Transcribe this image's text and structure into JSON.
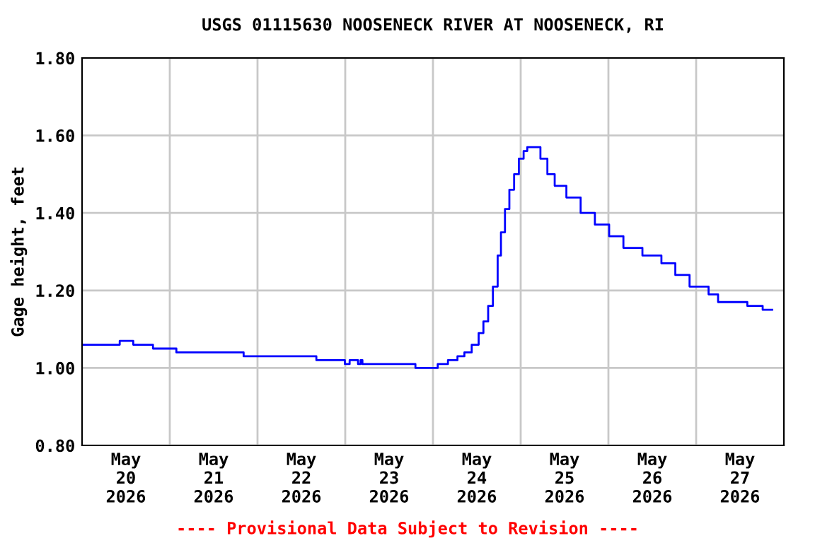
{
  "chart_data": {
    "type": "step",
    "title": "USGS 01115630 NOOSENECK RIVER AT NOOSENECK, RI",
    "ylabel": "Gage height, feet",
    "annotations": [
      "---- Provisional Data Subject to Revision ----"
    ],
    "x": [
      "2026-05-20T00:00",
      "2026-05-20T10:18",
      "2026-05-20T14:00",
      "2026-05-20T19:24",
      "2026-05-21T01:48",
      "2026-05-21T20:12",
      "2026-05-22T16:06",
      "2026-05-22T23:54",
      "2026-05-23T01:12",
      "2026-05-23T03:30",
      "2026-05-23T04:12",
      "2026-05-23T04:42",
      "2026-05-23T19:12",
      "2026-05-24T01:18",
      "2026-05-24T04:06",
      "2026-05-24T06:42",
      "2026-05-24T08:36",
      "2026-05-24T10:36",
      "2026-05-24T12:30",
      "2026-05-24T13:48",
      "2026-05-24T15:06",
      "2026-05-24T16:24",
      "2026-05-24T17:42",
      "2026-05-24T18:36",
      "2026-05-24T19:42",
      "2026-05-24T20:54",
      "2026-05-24T22:12",
      "2026-05-24T23:30",
      "2026-05-25T00:48",
      "2026-05-25T01:48",
      "2026-05-25T03:48",
      "2026-05-25T05:24",
      "2026-05-25T07:18",
      "2026-05-25T09:18",
      "2026-05-25T12:30",
      "2026-05-25T16:24",
      "2026-05-25T20:18",
      "2026-05-26T00:12",
      "2026-05-26T04:06",
      "2026-05-26T09:18",
      "2026-05-26T14:30",
      "2026-05-26T18:18",
      "2026-05-26T22:12",
      "2026-05-27T03:24",
      "2026-05-27T06:00",
      "2026-05-27T14:00",
      "2026-05-27T18:12",
      "2026-05-27T20:48"
    ],
    "series": [
      {
        "color": "#0000ff",
        "values": [
          1.06,
          1.07,
          1.06,
          1.05,
          1.04,
          1.03,
          1.02,
          1.01,
          1.02,
          1.01,
          1.02,
          1.01,
          1.0,
          1.01,
          1.02,
          1.03,
          1.04,
          1.06,
          1.09,
          1.12,
          1.16,
          1.21,
          1.29,
          1.35,
          1.41,
          1.46,
          1.5,
          1.54,
          1.56,
          1.57,
          1.57,
          1.54,
          1.5,
          1.47,
          1.44,
          1.4,
          1.37,
          1.34,
          1.31,
          1.29,
          1.27,
          1.24,
          1.21,
          1.19,
          1.17,
          1.16,
          1.15,
          1.15
        ]
      }
    ],
    "xlim": [
      "2026-05-20T00:00",
      "2026-05-28T00:00"
    ],
    "xticks": [
      {
        "value": "2026-05-20T12:00",
        "label": "May\n20\n2026"
      },
      {
        "value": "2026-05-21T00:00",
        "label": null
      },
      {
        "value": "2026-05-21T12:00",
        "label": "May\n21\n2026"
      },
      {
        "value": "2026-05-22T00:00",
        "label": null
      },
      {
        "value": "2026-05-22T12:00",
        "label": "May\n22\n2026"
      },
      {
        "value": "2026-05-23T00:00",
        "label": null
      },
      {
        "value": "2026-05-23T12:00",
        "label": "May\n23\n2026"
      },
      {
        "value": "2026-05-24T00:00",
        "label": null
      },
      {
        "value": "2026-05-24T12:00",
        "label": "May\n24\n2026"
      },
      {
        "value": "2026-05-25T00:00",
        "label": null
      },
      {
        "value": "2026-05-25T12:00",
        "label": "May\n25\n2026"
      },
      {
        "value": "2026-05-26T00:00",
        "label": null
      },
      {
        "value": "2026-05-26T12:00",
        "label": "May\n26\n2026"
      },
      {
        "value": "2026-05-27T00:00",
        "label": null
      },
      {
        "value": "2026-05-27T12:00",
        "label": "May\n27\n2026"
      }
    ],
    "ylim": [
      0.8,
      1.8
    ],
    "yticks": [
      {
        "value": 0.8,
        "label": "0.80"
      },
      {
        "value": 1.0,
        "label": "1.00"
      },
      {
        "value": 1.2,
        "label": "1.20"
      },
      {
        "value": 1.4,
        "label": "1.40"
      },
      {
        "value": 1.6,
        "label": "1.60"
      },
      {
        "value": 1.8,
        "label": "1.80"
      }
    ],
    "grid": true,
    "legend": false
  }
}
